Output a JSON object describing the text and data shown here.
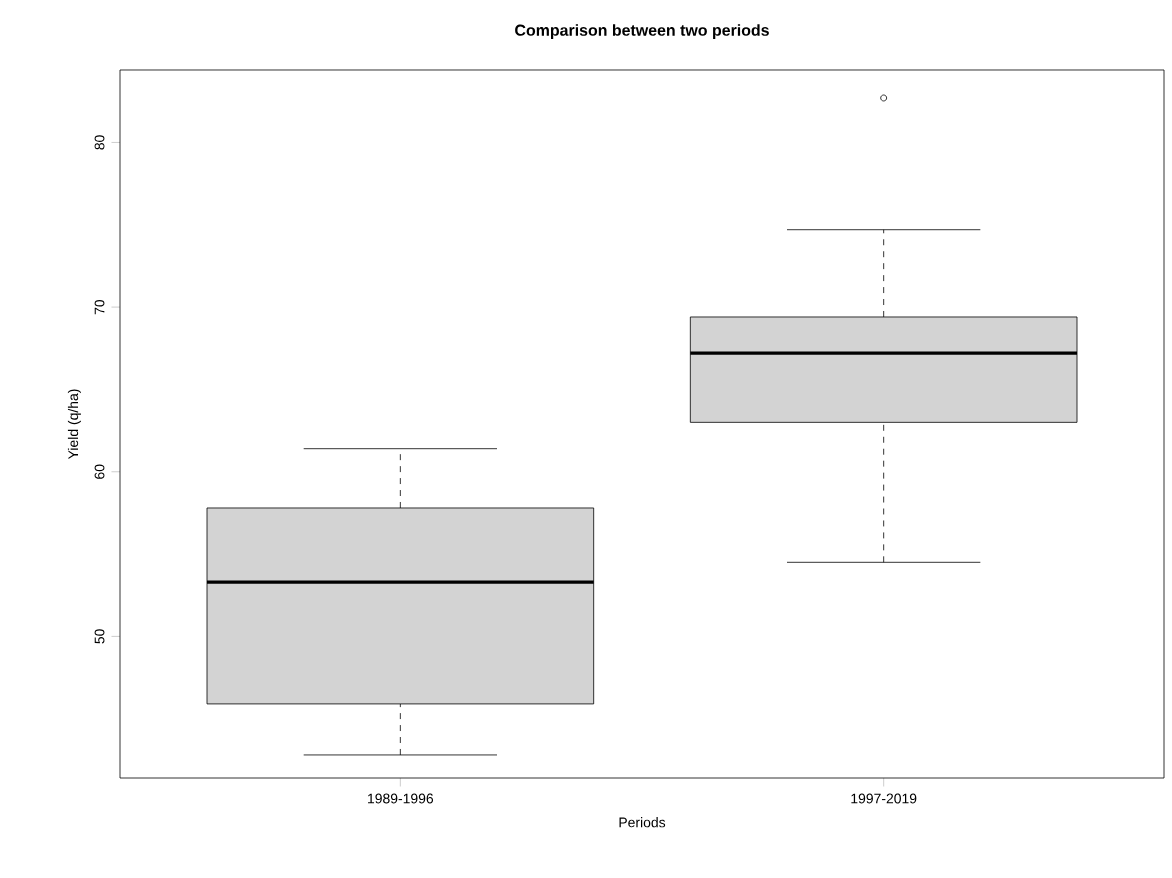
{
  "chart_data": {
    "type": "box",
    "title": "Comparison between two periods",
    "xlabel": "Periods",
    "ylabel": "Yield (q/ha)",
    "categories": [
      "1989-1996",
      "1997-2019"
    ],
    "boxes": [
      {
        "low": 42.8,
        "q1": 45.9,
        "median": 53.3,
        "q3": 57.8,
        "high": 61.4
      },
      {
        "low": 54.5,
        "q1": 63.0,
        "median": 67.2,
        "q3": 69.4,
        "high": 74.7,
        "outliers": [
          82.7
        ]
      }
    ],
    "color": "#d3d3d3",
    "ylim": [
      41.4,
      84.4
    ],
    "yticks": [
      50,
      60,
      70,
      80
    ],
    "grid": false
  }
}
